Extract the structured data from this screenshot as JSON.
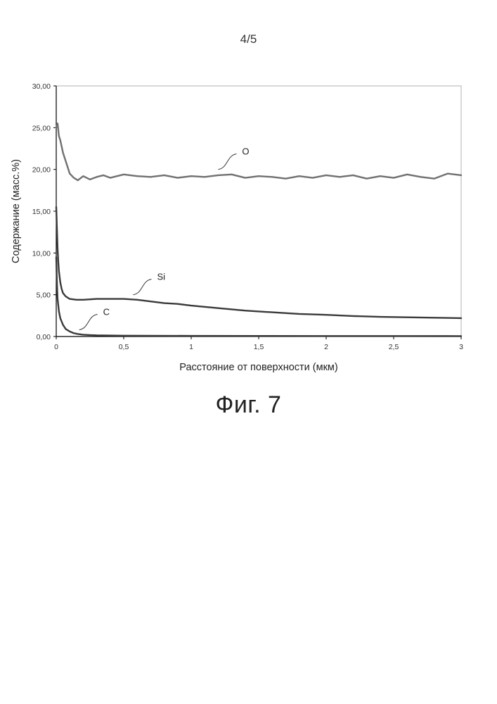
{
  "page": {
    "number": "4/5",
    "caption": "Фиг. 7"
  },
  "chart_data": {
    "type": "line",
    "title": "",
    "xlabel": "Расстояние от поверхности (мкм)",
    "ylabel": "Содержание (масс.%)",
    "xlim": [
      0,
      3
    ],
    "ylim": [
      0,
      30
    ],
    "x_ticks": [
      0,
      0.5,
      1,
      1.5,
      2,
      2.5,
      3
    ],
    "x_tick_labels": [
      "0",
      "0,5",
      "1",
      "1,5",
      "2",
      "2,5",
      "3"
    ],
    "y_ticks": [
      0,
      5,
      10,
      15,
      20,
      25,
      30
    ],
    "y_tick_labels": [
      "0,00",
      "5,00",
      "10,00",
      "15,00",
      "20,00",
      "25,00",
      "30,00"
    ],
    "grid": false,
    "legend": "none",
    "series": [
      {
        "name": "O",
        "color": "#707070",
        "x": [
          0,
          0.01,
          0.02,
          0.03,
          0.05,
          0.07,
          0.1,
          0.13,
          0.16,
          0.2,
          0.25,
          0.3,
          0.35,
          0.4,
          0.5,
          0.6,
          0.7,
          0.8,
          0.9,
          1.0,
          1.1,
          1.2,
          1.3,
          1.4,
          1.5,
          1.6,
          1.7,
          1.8,
          1.9,
          2.0,
          2.1,
          2.2,
          2.3,
          2.4,
          2.5,
          2.6,
          2.7,
          2.8,
          2.9,
          3.0
        ],
        "y": [
          25.0,
          25.5,
          24.0,
          23.5,
          22.0,
          21.0,
          19.5,
          19.0,
          18.7,
          19.2,
          18.8,
          19.1,
          19.3,
          19.0,
          19.4,
          19.2,
          19.1,
          19.3,
          19.0,
          19.2,
          19.1,
          19.3,
          19.4,
          19.0,
          19.2,
          19.1,
          18.9,
          19.2,
          19.0,
          19.3,
          19.1,
          19.3,
          18.9,
          19.2,
          19.0,
          19.4,
          19.1,
          18.9,
          19.5,
          19.3
        ]
      },
      {
        "name": "Si",
        "color": "#3a3a3a",
        "x": [
          0,
          0.005,
          0.01,
          0.015,
          0.02,
          0.03,
          0.04,
          0.05,
          0.07,
          0.1,
          0.15,
          0.2,
          0.3,
          0.4,
          0.5,
          0.6,
          0.7,
          0.8,
          0.9,
          1.0,
          1.2,
          1.4,
          1.6,
          1.8,
          2.0,
          2.2,
          2.4,
          2.6,
          2.8,
          3.0
        ],
        "y": [
          15.5,
          13.0,
          10.5,
          9.0,
          7.8,
          6.5,
          5.7,
          5.2,
          4.8,
          4.5,
          4.4,
          4.4,
          4.5,
          4.5,
          4.5,
          4.4,
          4.2,
          4.0,
          3.9,
          3.7,
          3.4,
          3.1,
          2.9,
          2.7,
          2.6,
          2.45,
          2.35,
          2.3,
          2.25,
          2.2
        ]
      },
      {
        "name": "C",
        "color": "#3a3a3a",
        "x": [
          0,
          0.005,
          0.01,
          0.02,
          0.03,
          0.05,
          0.07,
          0.1,
          0.13,
          0.16,
          0.2,
          0.25,
          0.3,
          0.4,
          0.5,
          0.7,
          1.0,
          1.5,
          2.0,
          2.5,
          3.0
        ],
        "y": [
          9.5,
          6.5,
          4.5,
          3.0,
          2.2,
          1.4,
          0.9,
          0.6,
          0.4,
          0.3,
          0.22,
          0.17,
          0.14,
          0.12,
          0.1,
          0.09,
          0.08,
          0.07,
          0.06,
          0.06,
          0.05
        ]
      }
    ],
    "annotations": [
      {
        "series": "O",
        "text": "O",
        "at_x": 1.2,
        "at_y": 20.0
      },
      {
        "series": "Si",
        "text": "Si",
        "at_x": 0.57,
        "at_y": 5.0
      },
      {
        "series": "C",
        "text": "C",
        "at_x": 0.17,
        "at_y": 0.8
      }
    ]
  }
}
